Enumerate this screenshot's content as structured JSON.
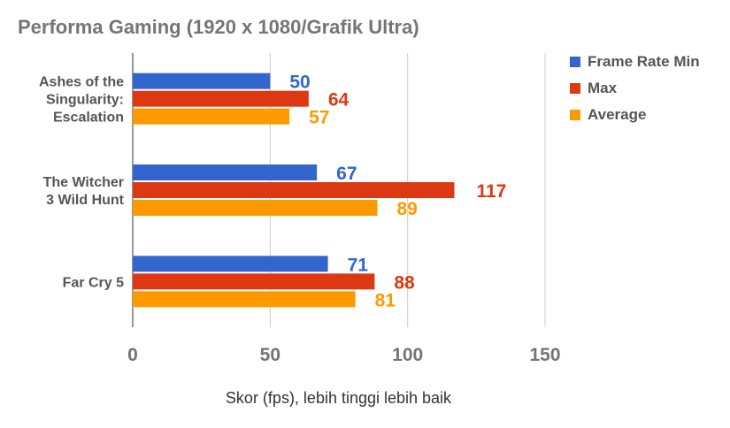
{
  "chart_data": {
    "type": "bar",
    "orientation": "horizontal",
    "title": "Performa Gaming (1920 x 1080/Grafik Ultra)",
    "xlabel": "Skor (fps), lebih tinggi lebih baik",
    "ylabel": "",
    "categories": [
      [
        "Ashes of the",
        "Singularity:",
        "Escalation"
      ],
      [
        "The Witcher",
        "3 Wild Hunt"
      ],
      [
        "Far Cry 5"
      ]
    ],
    "series": [
      {
        "name": "Frame Rate Min",
        "color": "#3366cc",
        "values": [
          50,
          67,
          71
        ]
      },
      {
        "name": "Max",
        "color": "#dc3912",
        "values": [
          64,
          117,
          88
        ]
      },
      {
        "name": "Average",
        "color": "#ff9900",
        "values": [
          57,
          89,
          81
        ]
      }
    ],
    "xlim": [
      0,
      150
    ],
    "xticks": [
      "0",
      "50",
      "100",
      "150"
    ],
    "grid": true,
    "legend": "right"
  }
}
